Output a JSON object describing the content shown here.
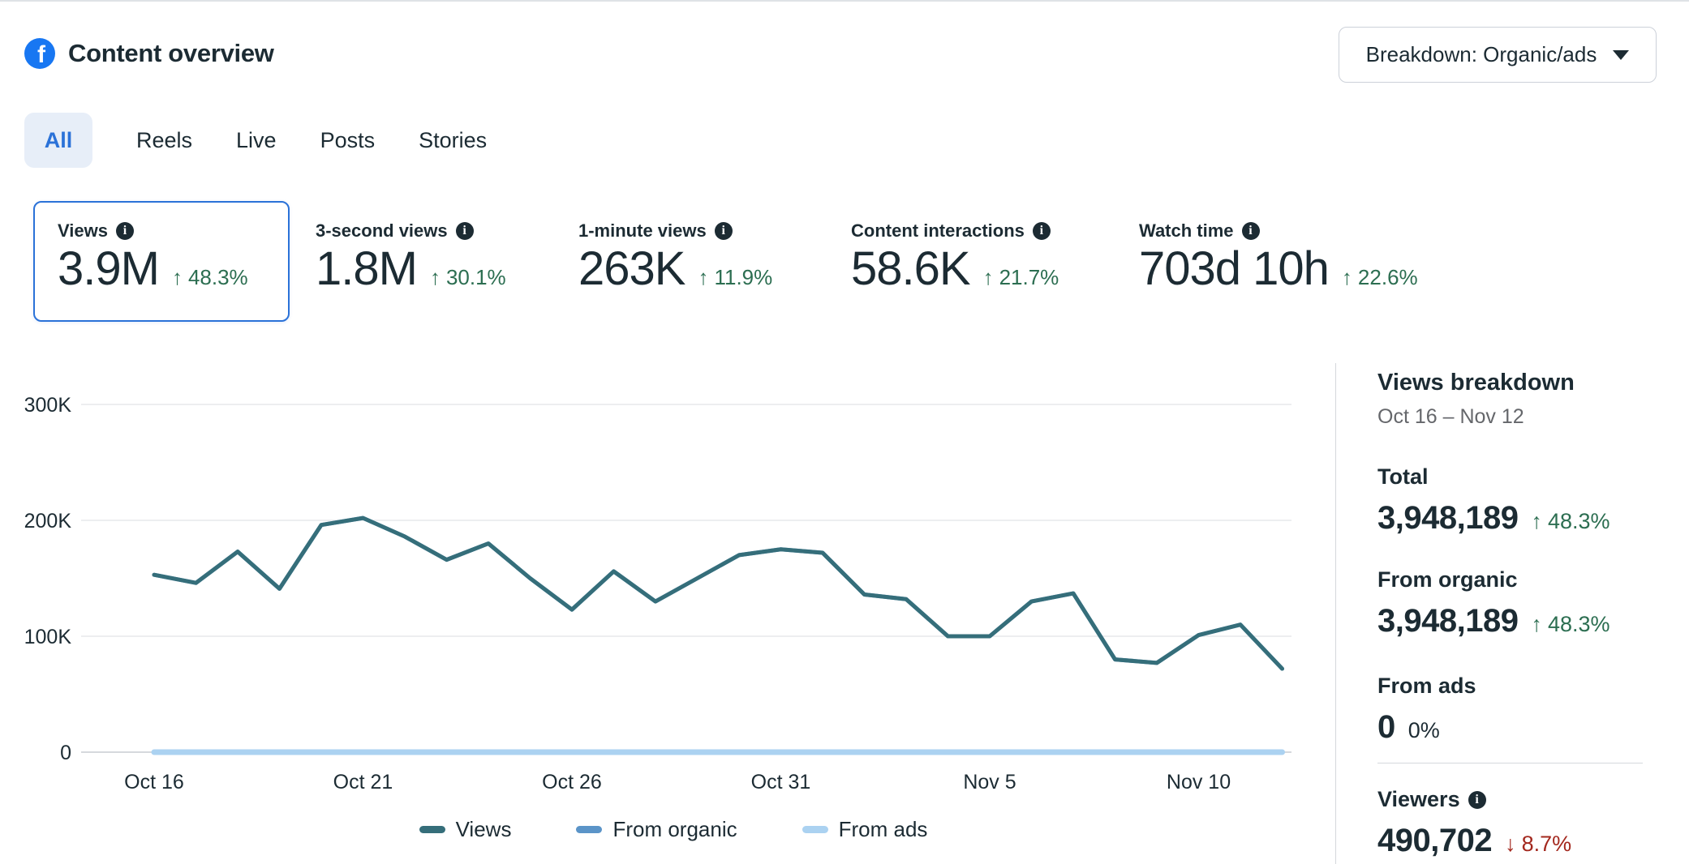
{
  "header": {
    "title": "Content overview",
    "breakdown_button": "Breakdown: Organic/ads"
  },
  "tabs": [
    {
      "label": "All",
      "selected": true
    },
    {
      "label": "Reels",
      "selected": false
    },
    {
      "label": "Live",
      "selected": false
    },
    {
      "label": "Posts",
      "selected": false
    },
    {
      "label": "Stories",
      "selected": false
    }
  ],
  "icons": {
    "info_glyph": "i"
  },
  "metrics": [
    {
      "label": "Views",
      "value": "3.9M",
      "arrow": "↑",
      "delta": "48.3%",
      "selected": true
    },
    {
      "label": "3-second views",
      "value": "1.8M",
      "arrow": "↑",
      "delta": "30.1%",
      "selected": false
    },
    {
      "label": "1-minute views",
      "value": "263K",
      "arrow": "↑",
      "delta": "11.9%",
      "selected": false
    },
    {
      "label": "Content interactions",
      "value": "58.6K",
      "arrow": "↑",
      "delta": "21.7%",
      "selected": false
    },
    {
      "label": "Watch time",
      "value": "703d 10h",
      "arrow": "↑",
      "delta": "22.6%",
      "selected": false
    }
  ],
  "chart_data": {
    "type": "line",
    "title": "Views over time",
    "x": [
      "Oct 16",
      "Oct 17",
      "Oct 18",
      "Oct 19",
      "Oct 20",
      "Oct 21",
      "Oct 22",
      "Oct 23",
      "Oct 24",
      "Oct 25",
      "Oct 26",
      "Oct 27",
      "Oct 28",
      "Oct 29",
      "Oct 30",
      "Oct 31",
      "Nov 1",
      "Nov 2",
      "Nov 3",
      "Nov 4",
      "Nov 5",
      "Nov 6",
      "Nov 7",
      "Nov 8",
      "Nov 9",
      "Nov 10",
      "Nov 11",
      "Nov 12"
    ],
    "series": [
      {
        "name": "Views",
        "color": "#356e7a",
        "values": [
          153000,
          146000,
          173000,
          141000,
          196000,
          202000,
          186000,
          166000,
          180000,
          150000,
          123000,
          156000,
          130000,
          150000,
          170000,
          175000,
          172000,
          136000,
          132000,
          100000,
          100000,
          130000,
          137000,
          80000,
          77000,
          101000,
          110000,
          72000
        ]
      },
      {
        "name": "From organic",
        "color": "#5b94c8",
        "values": [
          153000,
          146000,
          173000,
          141000,
          196000,
          202000,
          186000,
          166000,
          180000,
          150000,
          123000,
          156000,
          130000,
          150000,
          170000,
          175000,
          172000,
          136000,
          132000,
          100000,
          100000,
          130000,
          137000,
          80000,
          77000,
          101000,
          110000,
          72000
        ]
      },
      {
        "name": "From ads",
        "color": "#abd2f1",
        "values": [
          0,
          0,
          0,
          0,
          0,
          0,
          0,
          0,
          0,
          0,
          0,
          0,
          0,
          0,
          0,
          0,
          0,
          0,
          0,
          0,
          0,
          0,
          0,
          0,
          0,
          0,
          0,
          0
        ]
      }
    ],
    "x_ticks": [
      {
        "label": "Oct 16",
        "index": 0
      },
      {
        "label": "Oct 21",
        "index": 5
      },
      {
        "label": "Oct 26",
        "index": 10
      },
      {
        "label": "Oct 31",
        "index": 15
      },
      {
        "label": "Nov 5",
        "index": 20
      },
      {
        "label": "Nov 10",
        "index": 25
      }
    ],
    "y_ticks": [
      {
        "label": "0",
        "value": 0
      },
      {
        "label": "100K",
        "value": 100000
      },
      {
        "label": "200K",
        "value": 200000
      },
      {
        "label": "300K",
        "value": 300000
      }
    ],
    "ylim": [
      0,
      300000
    ],
    "grid": true,
    "legend_position": "bottom"
  },
  "sidebar": {
    "title": "Views breakdown",
    "date_range": "Oct 16 – Nov 12",
    "rows": [
      {
        "label": "Total",
        "value": "3,948,189",
        "arrow": "↑",
        "delta": "48.3%"
      },
      {
        "label": "From organic",
        "value": "3,948,189",
        "arrow": "↑",
        "delta": "48.3%"
      },
      {
        "label": "From ads",
        "value": "0",
        "arrow": "",
        "delta": "0%"
      }
    ],
    "viewers": {
      "label": "Viewers",
      "value": "490,702",
      "arrow": "↓",
      "delta": "8.7%"
    }
  },
  "colors": {
    "accent_blue": "#2b72d8",
    "facebook_blue": "#1877f2",
    "positive_green": "#2c6e51",
    "negative_red": "#a3281e",
    "views_line": "#356e7a",
    "organic_line": "#5b94c8",
    "ads_line": "#abd2f1"
  }
}
